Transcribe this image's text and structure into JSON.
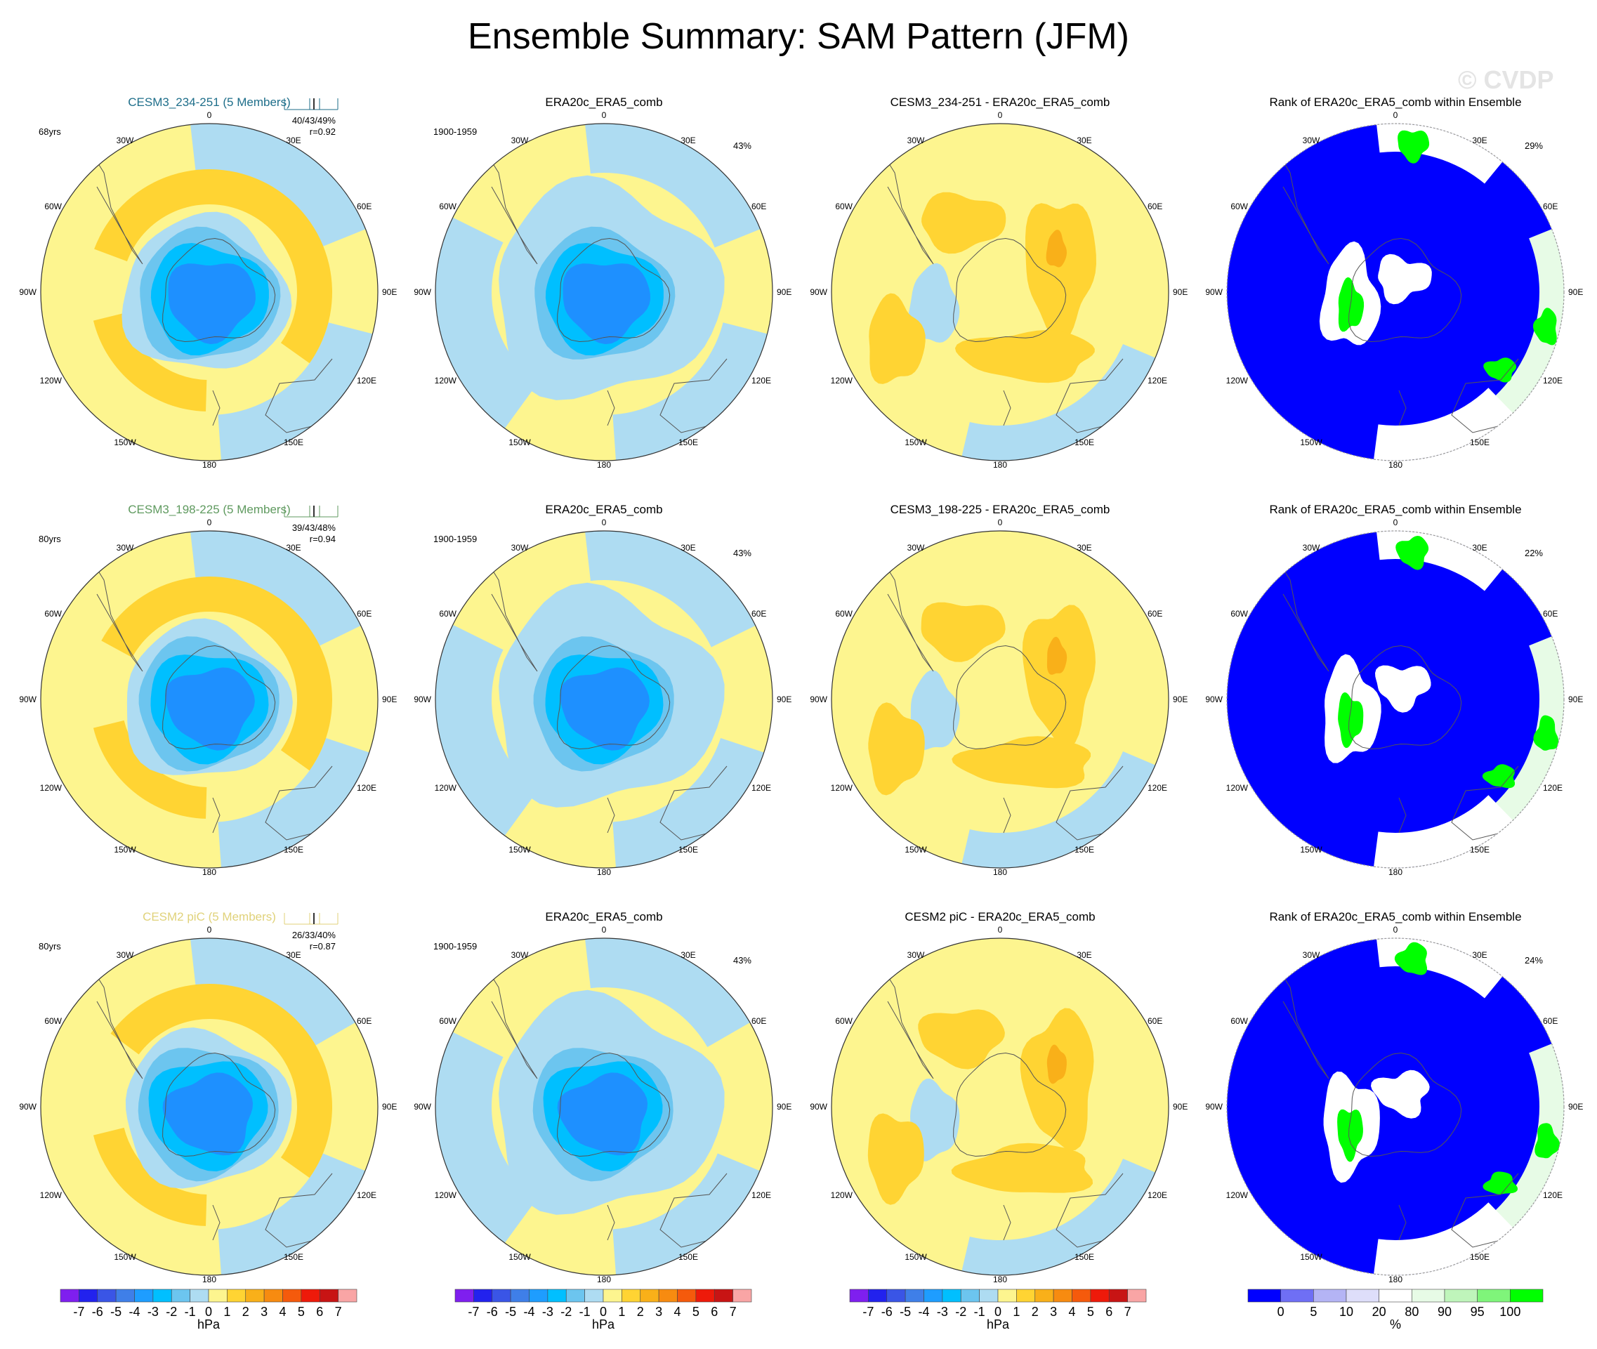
{
  "title": "Ensemble Summary: SAM Pattern (JFM)",
  "watermark": "© CVDP",
  "colors": {
    "row_titles": [
      "#1e6e8a",
      "#5f9a5f",
      "#e0d27a"
    ],
    "map_neg": [
      "#1e90ff",
      "#00bfff",
      "#6cc5ef",
      "#aedcf2"
    ],
    "map_pos": [
      "#fdf58f",
      "#ffd433",
      "#f9b019"
    ],
    "rank_blue": "#0000ff",
    "rank_green": "#00ff00",
    "rank_lightgreen": "#e7fbe6"
  },
  "lon_labels": {
    "top": "0",
    "bottom": "180",
    "ul": "30W",
    "ur": "30E",
    "uml": "60W",
    "umr": "60E",
    "ml": "90W",
    "mr": "90E",
    "lml": "120W",
    "lmr": "120E",
    "ll": "150W",
    "lr": "150E"
  },
  "rows": [
    {
      "col1": {
        "title": "CESM3_234-251 (5 Members)",
        "years": "68yrs",
        "stats": "40/43/49%",
        "corr": "r=0.92"
      },
      "col2": {
        "title": "ERA20c_ERA5_comb",
        "period": "1900-1959",
        "pct": "43%"
      },
      "col3": {
        "title": "CESM3_234-251 - ERA20c_ERA5_comb"
      },
      "col4": {
        "title": "Rank of ERA20c_ERA5_comb within Ensemble",
        "pct": "29%"
      }
    },
    {
      "col1": {
        "title": "CESM3_198-225 (5 Members)",
        "years": "80yrs",
        "stats": "39/43/48%",
        "corr": "r=0.94"
      },
      "col2": {
        "title": "ERA20c_ERA5_comb",
        "period": "1900-1959",
        "pct": "43%"
      },
      "col3": {
        "title": "CESM3_198-225 - ERA20c_ERA5_comb"
      },
      "col4": {
        "title": "Rank of ERA20c_ERA5_comb within Ensemble",
        "pct": "22%"
      }
    },
    {
      "col1": {
        "title": "CESM2 piC (5 Members)",
        "years": "80yrs",
        "stats": "26/33/40%",
        "corr": "r=0.87"
      },
      "col2": {
        "title": "ERA20c_ERA5_comb",
        "period": "1900-1959",
        "pct": "43%"
      },
      "col3": {
        "title": "CESM2 piC - ERA20c_ERA5_comb"
      },
      "col4": {
        "title": "Rank of ERA20c_ERA5_comb within Ensemble",
        "pct": "24%"
      }
    }
  ],
  "colorbar_hpa": {
    "ticks": [
      "-7",
      "-6",
      "-5",
      "-4",
      "-3",
      "-2",
      "-1",
      "0",
      "1",
      "2",
      "3",
      "4",
      "5",
      "6",
      "7"
    ],
    "unit": "hPa",
    "colors": [
      "#7f1fef",
      "#2222ee",
      "#3a55e6",
      "#3f7fe8",
      "#1e9dff",
      "#00bfff",
      "#6cc5ef",
      "#aedcf2",
      "#fdf58f",
      "#ffd433",
      "#f9b019",
      "#f78b10",
      "#f55a0c",
      "#ee1a0a",
      "#c81414",
      "#f9a5a5"
    ]
  },
  "colorbar_rank": {
    "ticks": [
      "0",
      "5",
      "10",
      "20",
      "80",
      "90",
      "95",
      "100"
    ],
    "unit": "%",
    "colors": [
      "#0000ff",
      "#6f6ff5",
      "#b4b4f5",
      "#dedefa",
      "#ffffff",
      "#e7fbe6",
      "#bff5bb",
      "#7ff57a",
      "#00ff00"
    ]
  }
}
